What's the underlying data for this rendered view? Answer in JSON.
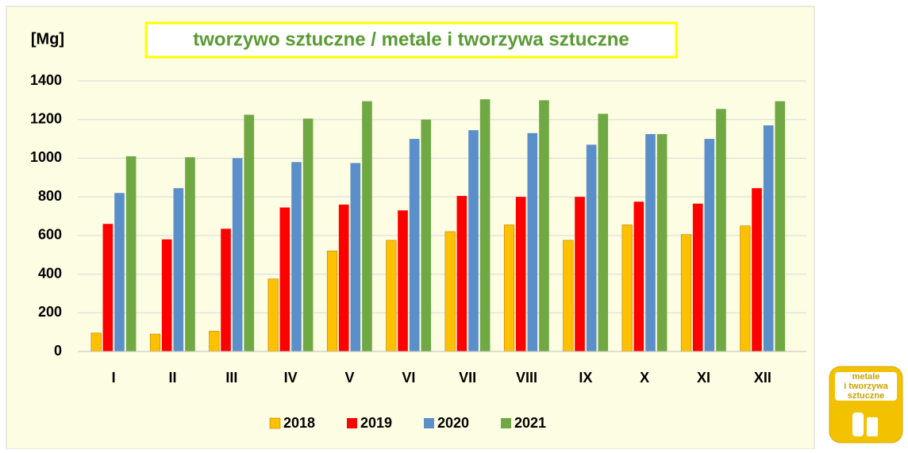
{
  "chart_data": {
    "type": "bar",
    "title": "tworzywo sztuczne / metale i tworzywa sztuczne",
    "y_label": "[Mg]",
    "categories": [
      "I",
      "II",
      "III",
      "IV",
      "V",
      "VI",
      "VII",
      "VIII",
      "IX",
      "X",
      "XI",
      "XII"
    ],
    "series": [
      {
        "name": "2018",
        "color": "#ffc000",
        "values": [
          95,
          90,
          105,
          375,
          520,
          575,
          620,
          655,
          575,
          655,
          605,
          650
        ]
      },
      {
        "name": "2019",
        "color": "#ff0000",
        "values": [
          660,
          580,
          635,
          745,
          760,
          730,
          805,
          800,
          800,
          775,
          765,
          845
        ]
      },
      {
        "name": "2020",
        "color": "#5b8fc9",
        "values": [
          820,
          845,
          1000,
          980,
          975,
          1100,
          1145,
          1130,
          1070,
          1125,
          1100,
          1170
        ]
      },
      {
        "name": "2021",
        "color": "#70a844",
        "values": [
          1010,
          1005,
          1225,
          1205,
          1295,
          1200,
          1305,
          1300,
          1230,
          1125,
          1255,
          1295
        ]
      }
    ],
    "ylim": [
      0,
      1400
    ],
    "yticks": [
      0,
      200,
      400,
      600,
      800,
      1000,
      1200,
      1400
    ],
    "grid": true,
    "legend": "bottom"
  },
  "badge_text": [
    "metale",
    "i tworzywa",
    "sztuczne"
  ]
}
